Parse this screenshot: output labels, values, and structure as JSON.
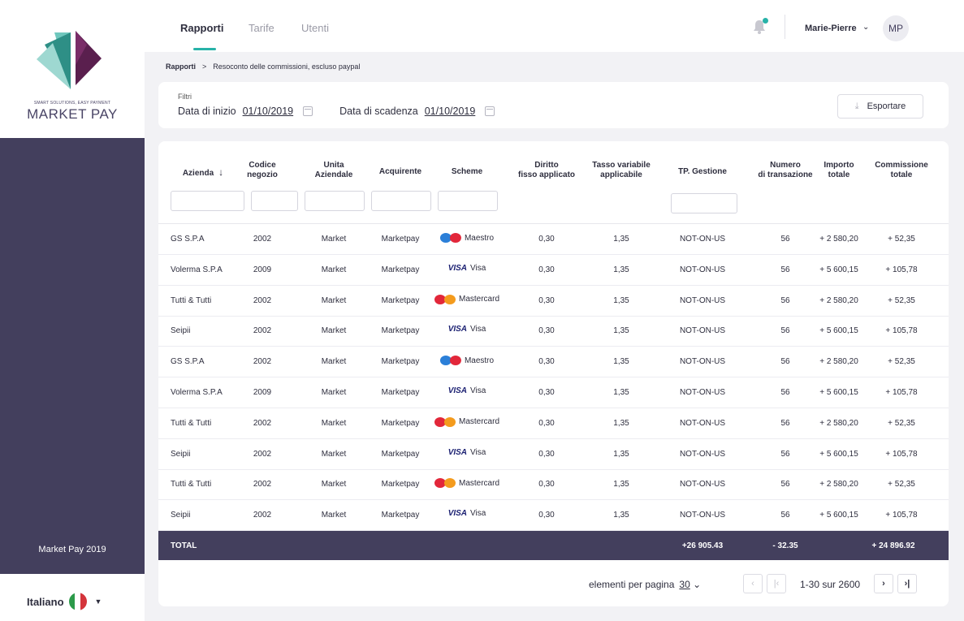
{
  "brand": {
    "tagline": "SMART SOLUTIONS, EASY PAYMENT",
    "name": "MARKET PAY",
    "footer": "Market Pay 2019",
    "colors": {
      "primary": "#433f5d",
      "accent": "#27b2a8",
      "logo_purple": "#5a1f4e",
      "logo_teal": "#2e8f86"
    }
  },
  "language": {
    "label": "Italiano",
    "flag": "flag-italy-icon"
  },
  "nav": {
    "tabs": [
      {
        "label": "Rapporti",
        "active": true
      },
      {
        "label": "Tarife",
        "active": false
      },
      {
        "label": "Utenti",
        "active": false
      }
    ],
    "user": {
      "name": "Marie-Pierre",
      "initials": "MP"
    }
  },
  "breadcrumb": {
    "root": "Rapporti",
    "sep": ">",
    "current": "Resoconto delle commissioni, escluso paypal"
  },
  "filters": {
    "title": "Filtri",
    "start_label": "Data di inizio",
    "start_value": "01/10/2019",
    "end_label": "Data di scadenza",
    "end_value": "01/10/2019",
    "export_label": "Esportare"
  },
  "table": {
    "headers": [
      "Azienda",
      "Codice\nnegozio",
      "Unita\nAziendale",
      "Acquirente",
      "Scheme",
      "Diritto\nfisso applicato",
      "Tasso variabile\napplicabile",
      "TP. Gestione",
      "Numero\ndi transazione",
      "Importo\ntotale",
      "Commissione\ntotale"
    ],
    "rows": [
      [
        "GS S.P.A",
        "2002",
        "Market",
        "Marketpay",
        "Maestro",
        "0,30",
        "1,35",
        "NOT-ON-US",
        "56",
        "+ 2 580,20",
        "+ 52,35"
      ],
      [
        "Volerma S.P.A",
        "2009",
        "Market",
        "Marketpay",
        "Visa",
        "0,30",
        "1,35",
        "NOT-ON-US",
        "56",
        "+ 5 600,15",
        "+ 105,78"
      ],
      [
        "Tutti & Tutti",
        "2002",
        "Market",
        "Marketpay",
        "Mastercard",
        "0,30",
        "1,35",
        "NOT-ON-US",
        "56",
        "+ 2 580,20",
        "+ 52,35"
      ],
      [
        "Seipii",
        "2002",
        "Market",
        "Marketpay",
        "Visa",
        "0,30",
        "1,35",
        "NOT-ON-US",
        "56",
        "+ 5 600,15",
        "+ 105,78"
      ],
      [
        "GS S.P.A",
        "2002",
        "Market",
        "Marketpay",
        "Maestro",
        "0,30",
        "1,35",
        "NOT-ON-US",
        "56",
        "+ 2 580,20",
        "+ 52,35"
      ],
      [
        "Volerma S.P.A",
        "2009",
        "Market",
        "Marketpay",
        "Visa",
        "0,30",
        "1,35",
        "NOT-ON-US",
        "56",
        "+ 5 600,15",
        "+ 105,78"
      ],
      [
        "Tutti & Tutti",
        "2002",
        "Market",
        "Marketpay",
        "Mastercard",
        "0,30",
        "1,35",
        "NOT-ON-US",
        "56",
        "+ 2 580,20",
        "+ 52,35"
      ],
      [
        "Seipii",
        "2002",
        "Market",
        "Marketpay",
        "Visa",
        "0,30",
        "1,35",
        "NOT-ON-US",
        "56",
        "+ 5 600,15",
        "+ 105,78"
      ],
      [
        "Tutti & Tutti",
        "2002",
        "Market",
        "Marketpay",
        "Mastercard",
        "0,30",
        "1,35",
        "NOT-ON-US",
        "56",
        "+ 2 580,20",
        "+ 52,35"
      ],
      [
        "Seipii",
        "2002",
        "Market",
        "Marketpay",
        "Visa",
        "0,30",
        "1,35",
        "NOT-ON-US",
        "56",
        "+ 5 600,15",
        "+ 105,78"
      ]
    ],
    "total": {
      "label": "TOTAL",
      "gestione": "+26 905.43",
      "transazioni": "- 32.35",
      "commissione": "+ 24 896.92"
    }
  },
  "pagination": {
    "per_page_label": "elementi per pagina",
    "per_page_value": "30",
    "range": "1-30 sur 2600",
    "prev_icon": "chevron-left-icon",
    "first_icon": "first-page-icon",
    "next_icon": "chevron-right-icon",
    "last_icon": "last-page-icon"
  }
}
